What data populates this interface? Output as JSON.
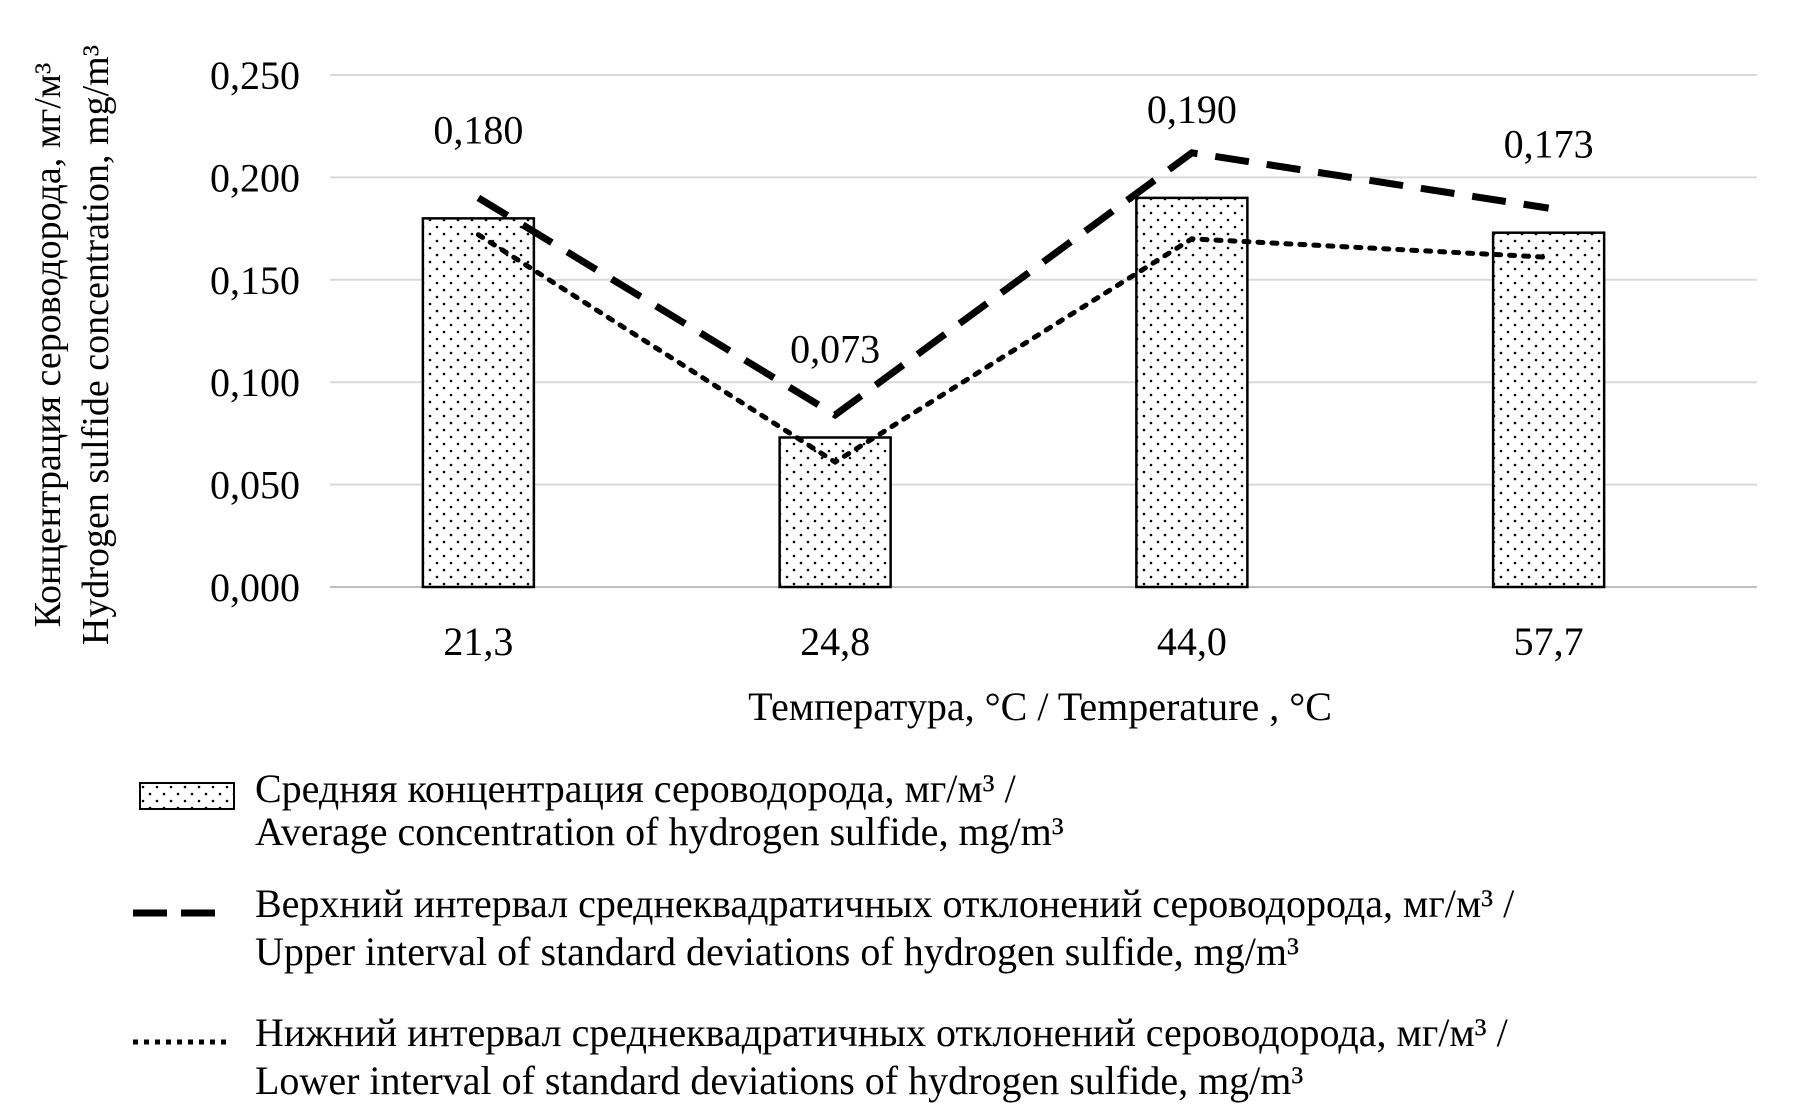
{
  "chart_data": {
    "type": "bar",
    "title": "",
    "xlabel": "Температура, °C / Temperature , °C",
    "ylabel_line1": "Концентрация сероводорода, мг/м³",
    "ylabel_line2": "Hydrogen sulfide concentration, mg/m³",
    "categories": [
      "21,3",
      "24,8",
      "44,0",
      "57,7"
    ],
    "ylim": [
      0,
      0.25
    ],
    "yticks": [
      0,
      0.05,
      0.1,
      0.15,
      0.2,
      0.25
    ],
    "ytick_labels": [
      "0,000",
      "0,050",
      "0,100",
      "0,150",
      "0,200",
      "0,250"
    ],
    "grid": true,
    "legend_position": "bottom",
    "series": [
      {
        "name": "average",
        "kind": "bar",
        "values": [
          0.18,
          0.073,
          0.19,
          0.173
        ],
        "data_labels": [
          "0,180",
          "0,073",
          "0,190",
          "0,173"
        ],
        "legend_line1": "Средняя концентрация сероводорода, мг/м³ /",
        "legend_line2": "Average concentration of hydrogen sulfide, mg/m³"
      },
      {
        "name": "upper",
        "kind": "dashed-line",
        "values": [
          0.19,
          0.084,
          0.212,
          0.185
        ],
        "legend_line1": "Верхний интервал среднеквадратичных отклонений сероводорода, мг/м³ /",
        "legend_line2": "Upper interval of standard deviations of hydrogen sulfide, mg/m³"
      },
      {
        "name": "lower",
        "kind": "dotted-line",
        "values": [
          0.172,
          0.061,
          0.17,
          0.161
        ],
        "legend_line1": "Нижний интервал среднеквадратичных отклонений сероводорода, мг/м³ /",
        "legend_line2": "Lower interval of standard deviations of hydrogen sulfide, mg/m³"
      }
    ]
  }
}
